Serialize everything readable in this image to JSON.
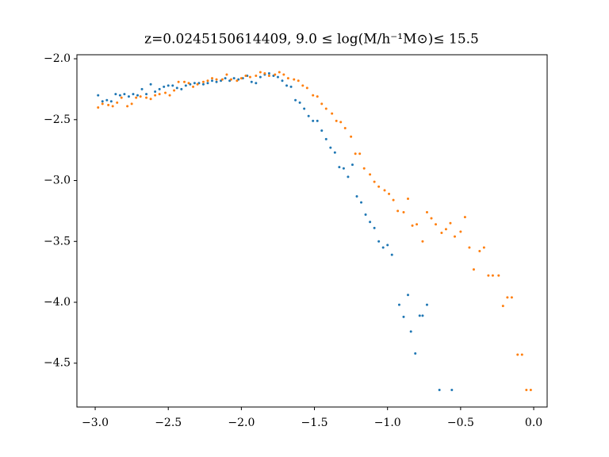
{
  "chart_data": {
    "type": "scatter",
    "title": "z=0.0245150614409, 9.0 ≤ log(M/h⁻¹M⊙)≤ 15.5",
    "xlim": [
      -3.125,
      0.092
    ],
    "ylim": [
      -4.86,
      -1.967
    ],
    "xticks": [
      {
        "value": -3.0,
        "label": "−3.0"
      },
      {
        "value": -2.5,
        "label": "−2.5"
      },
      {
        "value": -2.0,
        "label": "−2.0"
      },
      {
        "value": -1.5,
        "label": "−1.5"
      },
      {
        "value": -1.0,
        "label": "−1.0"
      },
      {
        "value": -0.5,
        "label": "−0.5"
      },
      {
        "value": 0.0,
        "label": "0.0"
      }
    ],
    "yticks": [
      {
        "value": -4.5,
        "label": "−4.5"
      },
      {
        "value": -4.0,
        "label": "−4.0"
      },
      {
        "value": -3.5,
        "label": "−3.5"
      },
      {
        "value": -3.0,
        "label": "−3.0"
      },
      {
        "value": -2.5,
        "label": "−2.5"
      },
      {
        "value": -2.0,
        "label": "−2.0"
      }
    ],
    "series": [
      {
        "color": "#1f77b4",
        "x": [
          -2.98,
          -2.95,
          -2.92,
          -2.89,
          -2.86,
          -2.83,
          -2.8,
          -2.77,
          -2.74,
          -2.71,
          -2.68,
          -2.65,
          -2.62,
          -2.59,
          -2.56,
          -2.53,
          -2.5,
          -2.47,
          -2.44,
          -2.41,
          -2.38,
          -2.35,
          -2.32,
          -2.29,
          -2.26,
          -2.23,
          -2.2,
          -2.17,
          -2.14,
          -2.11,
          -2.08,
          -2.05,
          -2.02,
          -1.99,
          -1.96,
          -1.93,
          -1.9,
          -1.87,
          -1.84,
          -1.81,
          -1.78,
          -1.75,
          -1.72,
          -1.69,
          -1.66,
          -1.63,
          -1.6,
          -1.57,
          -1.54,
          -1.51,
          -1.48,
          -1.45,
          -1.42,
          -1.39,
          -1.36,
          -1.33,
          -1.3,
          -1.27,
          -1.24,
          -1.21,
          -1.18,
          -1.15,
          -1.12,
          -1.09,
          -1.06,
          -1.03,
          -1.0,
          -0.97,
          -0.92,
          -0.89,
          -0.86,
          -0.84,
          -0.81,
          -0.78,
          -0.76,
          -0.73,
          -0.645,
          -0.56
        ],
        "values": [
          -2.3,
          -2.35,
          -2.34,
          -2.35,
          -2.29,
          -2.3,
          -2.29,
          -2.31,
          -2.29,
          -2.3,
          -2.25,
          -2.29,
          -2.21,
          -2.27,
          -2.25,
          -2.23,
          -2.22,
          -2.22,
          -2.24,
          -2.25,
          -2.22,
          -2.21,
          -2.2,
          -2.2,
          -2.21,
          -2.2,
          -2.18,
          -2.19,
          -2.18,
          -2.16,
          -2.18,
          -2.16,
          -2.17,
          -2.16,
          -2.14,
          -2.19,
          -2.2,
          -2.15,
          -2.13,
          -2.12,
          -2.14,
          -2.15,
          -2.18,
          -2.22,
          -2.23,
          -2.34,
          -2.36,
          -2.41,
          -2.47,
          -2.51,
          -2.51,
          -2.59,
          -2.66,
          -2.73,
          -2.77,
          -2.89,
          -2.9,
          -2.97,
          -2.87,
          -3.13,
          -3.18,
          -3.28,
          -3.34,
          -3.39,
          -3.5,
          -3.55,
          -3.53,
          -3.61,
          -4.02,
          -4.12,
          -3.94,
          -4.24,
          -4.42,
          -4.11,
          -4.11,
          -4.02,
          -4.72,
          -4.72
        ]
      },
      {
        "color": "#ff7f0e",
        "x": [
          -2.98,
          -2.95,
          -2.91,
          -2.88,
          -2.85,
          -2.82,
          -2.78,
          -2.75,
          -2.72,
          -2.69,
          -2.65,
          -2.62,
          -2.59,
          -2.56,
          -2.52,
          -2.49,
          -2.46,
          -2.43,
          -2.39,
          -2.36,
          -2.33,
          -2.3,
          -2.26,
          -2.23,
          -2.2,
          -2.17,
          -2.13,
          -2.1,
          -2.07,
          -2.03,
          -2.0,
          -1.97,
          -1.94,
          -1.9,
          -1.87,
          -1.84,
          -1.81,
          -1.77,
          -1.74,
          -1.71,
          -1.68,
          -1.64,
          -1.61,
          -1.58,
          -1.55,
          -1.51,
          -1.48,
          -1.45,
          -1.42,
          -1.38,
          -1.35,
          -1.32,
          -1.29,
          -1.25,
          -1.22,
          -1.19,
          -1.16,
          -1.12,
          -1.09,
          -1.06,
          -1.02,
          -0.99,
          -0.96,
          -0.93,
          -0.89,
          -0.86,
          -0.83,
          -0.8,
          -0.76,
          -0.73,
          -0.7,
          -0.67,
          -0.63,
          -0.6,
          -0.57,
          -0.54,
          -0.5,
          -0.47,
          -0.44,
          -0.41,
          -0.37,
          -0.34,
          -0.31,
          -0.28,
          -0.24,
          -0.21,
          -0.18,
          -0.15,
          -0.11,
          -0.08,
          -0.05,
          -0.02
        ],
        "values": [
          -2.4,
          -2.37,
          -2.38,
          -2.39,
          -2.36,
          -2.32,
          -2.39,
          -2.37,
          -2.32,
          -2.31,
          -2.32,
          -2.33,
          -2.3,
          -2.29,
          -2.28,
          -2.3,
          -2.26,
          -2.19,
          -2.19,
          -2.2,
          -2.23,
          -2.21,
          -2.19,
          -2.18,
          -2.16,
          -2.17,
          -2.17,
          -2.13,
          -2.17,
          -2.18,
          -2.16,
          -2.14,
          -2.15,
          -2.14,
          -2.11,
          -2.12,
          -2.14,
          -2.13,
          -2.11,
          -2.13,
          -2.16,
          -2.17,
          -2.18,
          -2.22,
          -2.24,
          -2.3,
          -2.31,
          -2.37,
          -2.41,
          -2.45,
          -2.51,
          -2.52,
          -2.57,
          -2.64,
          -2.78,
          -2.78,
          -2.9,
          -2.95,
          -3.01,
          -3.05,
          -3.08,
          -3.11,
          -3.16,
          -3.25,
          -3.26,
          -3.15,
          -3.37,
          -3.36,
          -3.5,
          -3.26,
          -3.31,
          -3.36,
          -3.43,
          -3.4,
          -3.35,
          -3.46,
          -3.42,
          -3.3,
          -3.55,
          -3.73,
          -3.58,
          -3.55,
          -3.78,
          -3.78,
          -3.78,
          -4.03,
          -3.96,
          -3.96,
          -4.43,
          -4.43,
          -4.72,
          -4.72
        ]
      }
    ]
  }
}
